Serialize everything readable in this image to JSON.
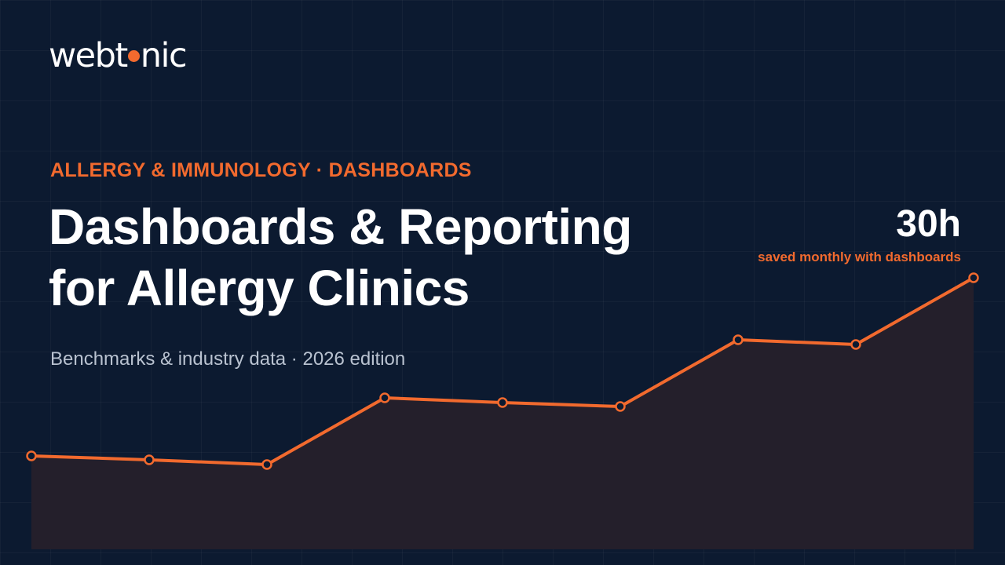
{
  "brand": {
    "logo_before": "webt",
    "logo_after": "nic",
    "accent_color": "#f26a2e",
    "background_color": "#0c1a30"
  },
  "hero": {
    "kicker": "ALLERGY & IMMUNOLOGY · DASHBOARDS",
    "title_line1": "Dashboards & Reporting",
    "title_line2": "for Allergy Clinics",
    "subtitle": "Benchmarks & industry data · 2026 edition"
  },
  "stat": {
    "value": "30h",
    "label": "saved monthly with dashboards"
  },
  "chart_data": {
    "type": "area",
    "title": "",
    "xlabel": "",
    "ylabel": "",
    "grid": true,
    "legend": "none",
    "color": "#f26a2e",
    "fill_color": "#241f2b",
    "x": [
      1,
      2,
      3,
      4,
      5,
      6,
      7,
      8,
      9
    ],
    "values": [
      119,
      114,
      108,
      193,
      187,
      182,
      267,
      261,
      346
    ],
    "ylim": [
      0,
      346
    ]
  }
}
